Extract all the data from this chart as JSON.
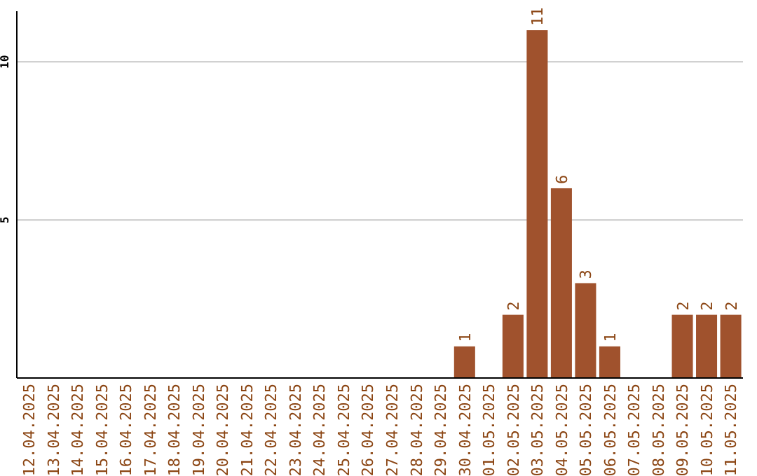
{
  "chart_data": {
    "type": "bar",
    "categories": [
      "12.04.2025",
      "13.04.2025",
      "14.04.2025",
      "15.04.2025",
      "16.04.2025",
      "17.04.2025",
      "18.04.2025",
      "19.04.2025",
      "20.04.2025",
      "21.04.2025",
      "22.04.2025",
      "23.04.2025",
      "24.04.2025",
      "25.04.2025",
      "26.04.2025",
      "27.04.2025",
      "28.04.2025",
      "29.04.2025",
      "30.04.2025",
      "01.05.2025",
      "02.05.2025",
      "03.05.2025",
      "04.05.2025",
      "05.05.2025",
      "06.05.2025",
      "07.05.2025",
      "08.05.2025",
      "09.05.2025",
      "10.05.2025",
      "11.05.2025"
    ],
    "values": [
      0,
      0,
      0,
      0,
      0,
      0,
      0,
      0,
      0,
      0,
      0,
      0,
      0,
      0,
      0,
      0,
      0,
      0,
      1,
      0,
      2,
      11,
      6,
      3,
      1,
      0,
      0,
      2,
      2,
      2
    ],
    "value_labels": [
      null,
      null,
      null,
      null,
      null,
      null,
      null,
      null,
      null,
      null,
      null,
      null,
      null,
      null,
      null,
      null,
      null,
      null,
      "1",
      null,
      "2",
      "11",
      "6",
      "3",
      "1",
      null,
      null,
      "2",
      "2",
      "2"
    ],
    "color": "#a0522d",
    "ylim": [
      0,
      11.6
    ],
    "yticks": [
      5,
      10
    ],
    "grid": "y"
  }
}
